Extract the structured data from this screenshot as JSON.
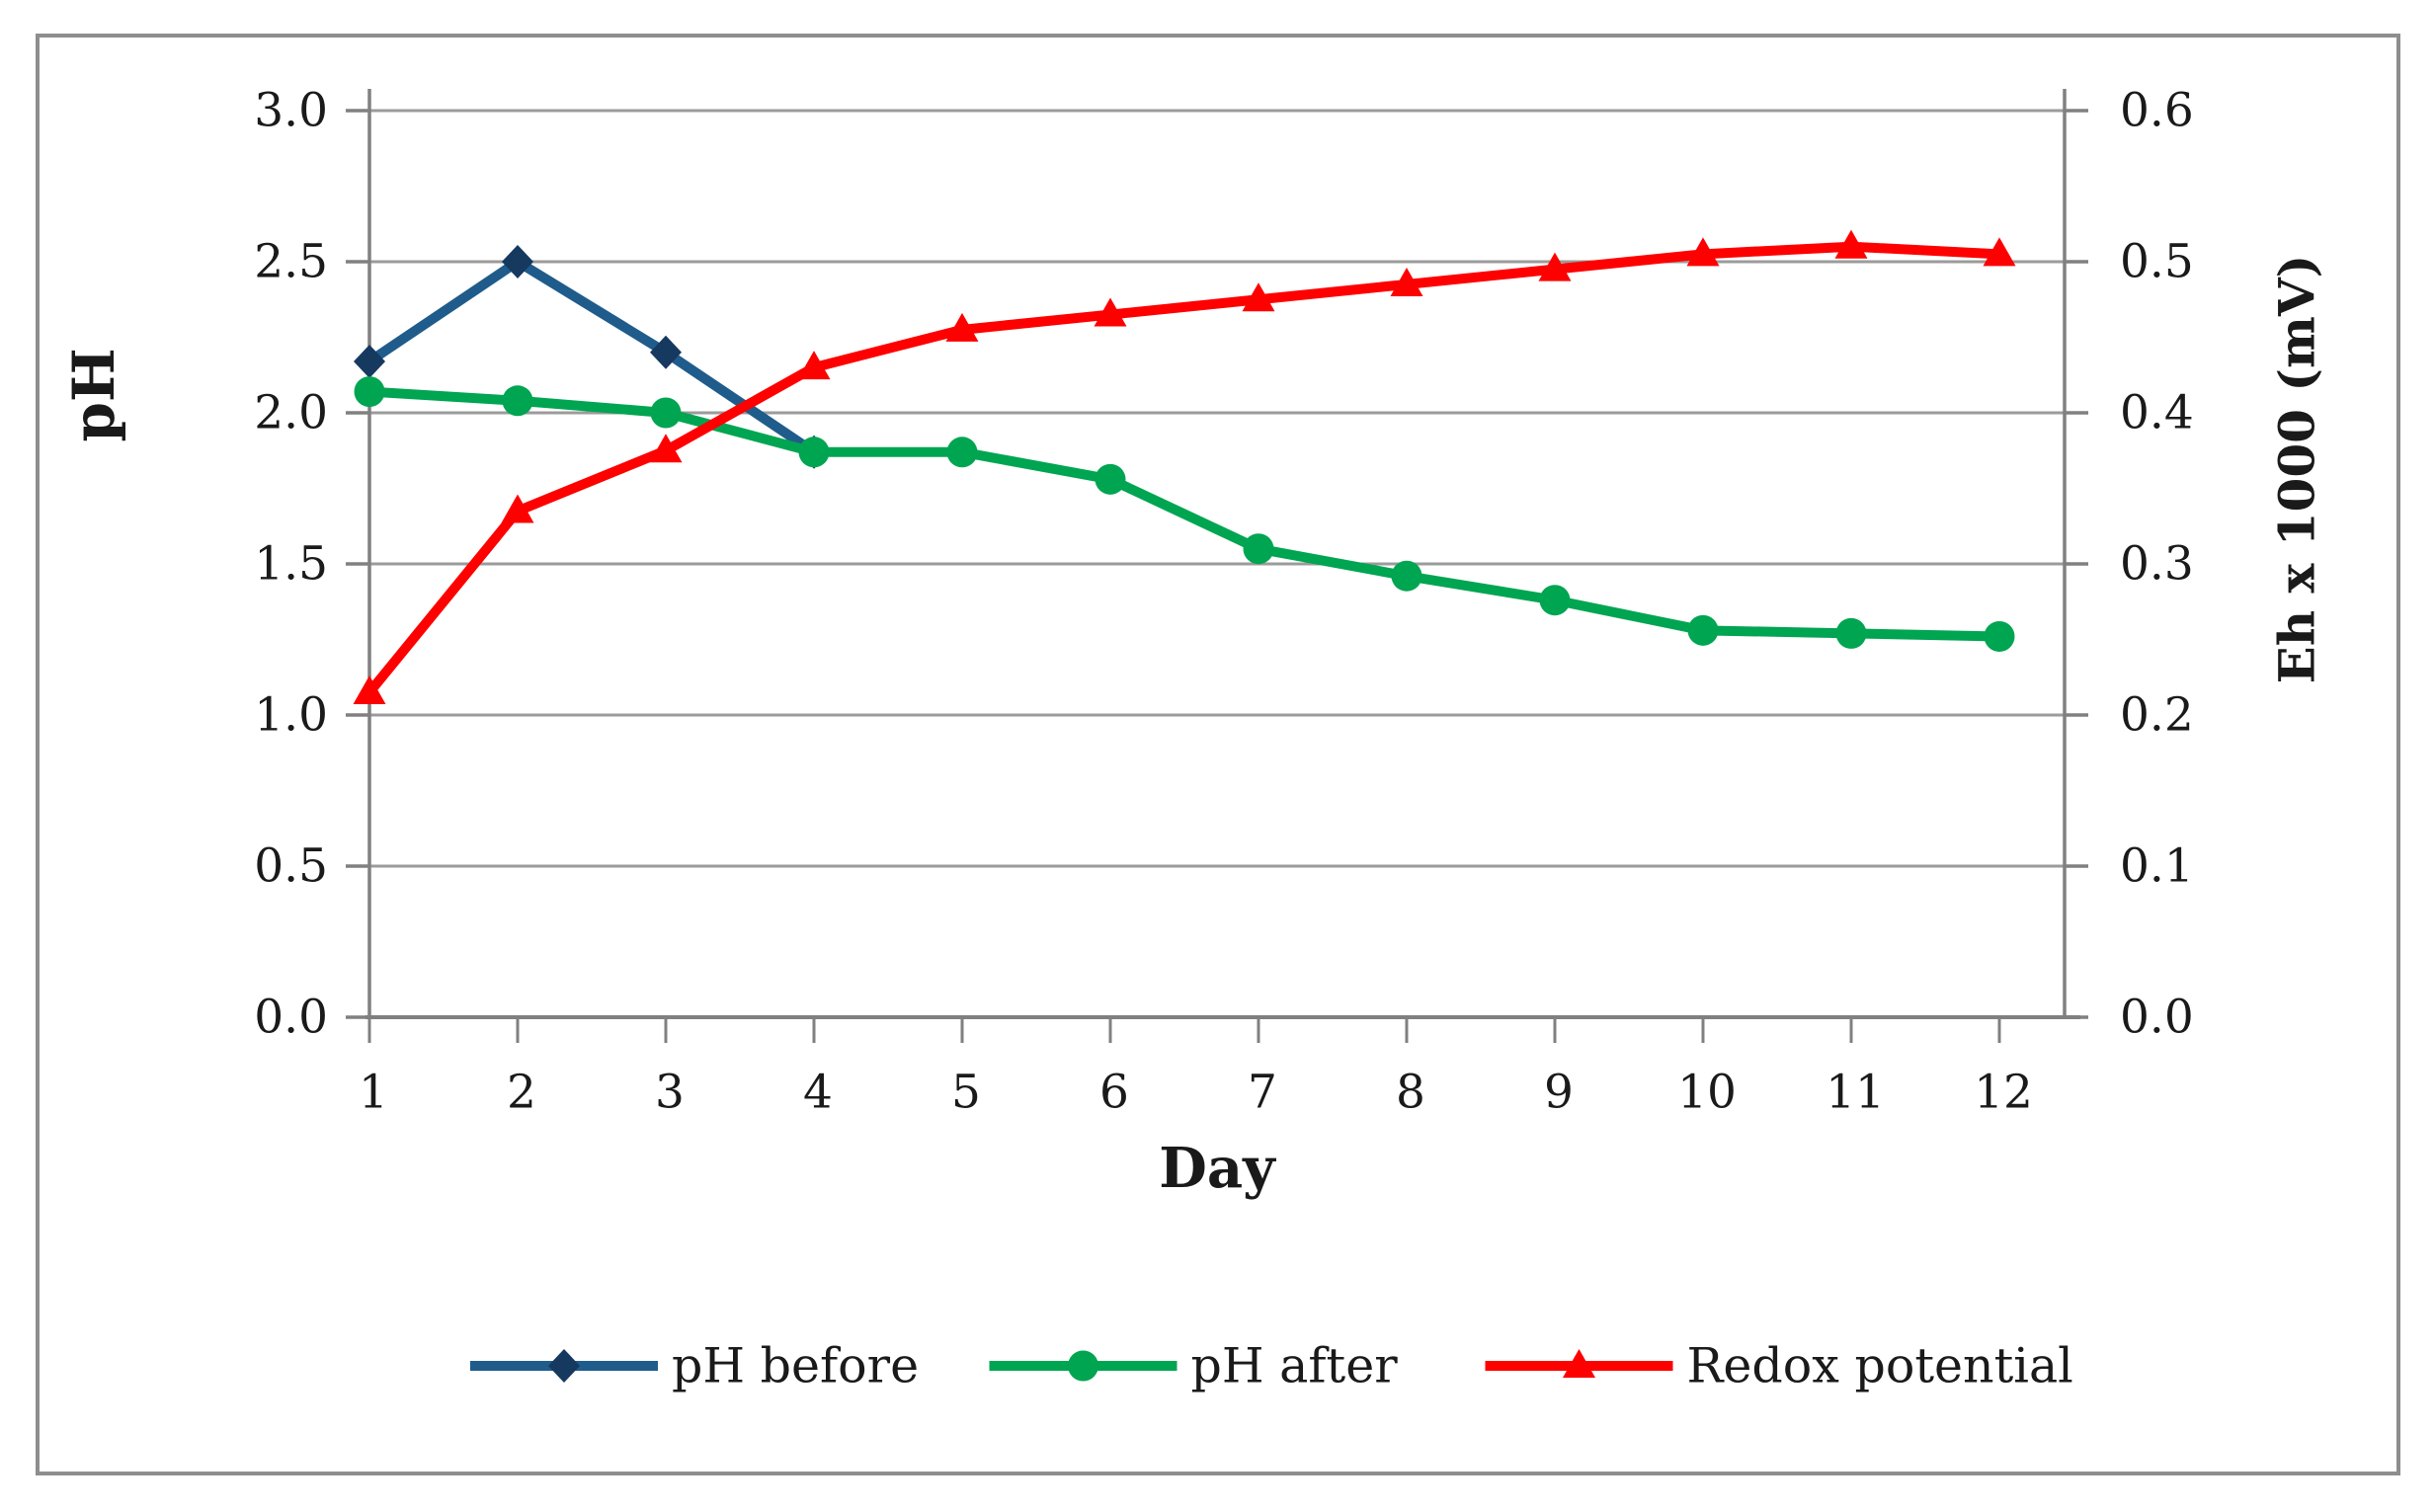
{
  "figure": {
    "border_color": "#8E8E8E",
    "background_color": "#FFFFFF"
  },
  "chart_data": {
    "type": "line",
    "title": "",
    "xlabel": "Day",
    "ylabel_left": "pH",
    "ylabel_right": "Eh x 1000 (mV)",
    "x_tick_labels": [
      "1",
      "2",
      "3",
      "4",
      "5",
      "6",
      "7",
      "8",
      "9",
      "10",
      "11",
      "12"
    ],
    "y_left_tick_labels": [
      "0.0",
      "0.5",
      "1.0",
      "1.5",
      "2.0",
      "2.5",
      "3.0"
    ],
    "y_right_tick_labels": [
      "0.0",
      "0.1",
      "0.2",
      "0.3",
      "0.4",
      "0.5",
      "0.6"
    ],
    "ylim_left": [
      0.0,
      3.0
    ],
    "ylim_right": [
      0.0,
      0.6
    ],
    "xlim": [
      1,
      12
    ],
    "grid": true,
    "grid_color": "#9B9B9B",
    "axis_color": "#808080",
    "text_color": "#1A1A1A",
    "legend_position": "bottom",
    "series": [
      {
        "name": "pH before",
        "axis": "left",
        "marker": "diamond",
        "color": "#1F5C8B",
        "marker_color": "#16395F",
        "x": [
          1,
          2,
          3,
          4
        ],
        "values": [
          2.17,
          2.5,
          2.2,
          1.87
        ]
      },
      {
        "name": "pH after",
        "axis": "left",
        "marker": "circle",
        "color": "#00A551",
        "marker_color": "#00A551",
        "x": [
          1,
          2,
          3,
          4,
          5,
          6,
          7,
          8,
          9,
          10,
          11,
          12
        ],
        "values": [
          2.07,
          2.04,
          2.0,
          1.87,
          1.87,
          1.78,
          1.55,
          1.46,
          1.38,
          1.28,
          1.27,
          1.26
        ]
      },
      {
        "name": "Redox potential",
        "axis": "right",
        "marker": "triangle",
        "color": "#FE0000",
        "marker_color": "#FE0000",
        "x": [
          1,
          2,
          3,
          4,
          5,
          6,
          7,
          8,
          9,
          10,
          11,
          12
        ],
        "values": [
          0.215,
          0.335,
          0.375,
          0.43,
          0.455,
          0.465,
          0.475,
          0.485,
          0.495,
          0.505,
          0.51,
          0.505
        ]
      }
    ]
  }
}
